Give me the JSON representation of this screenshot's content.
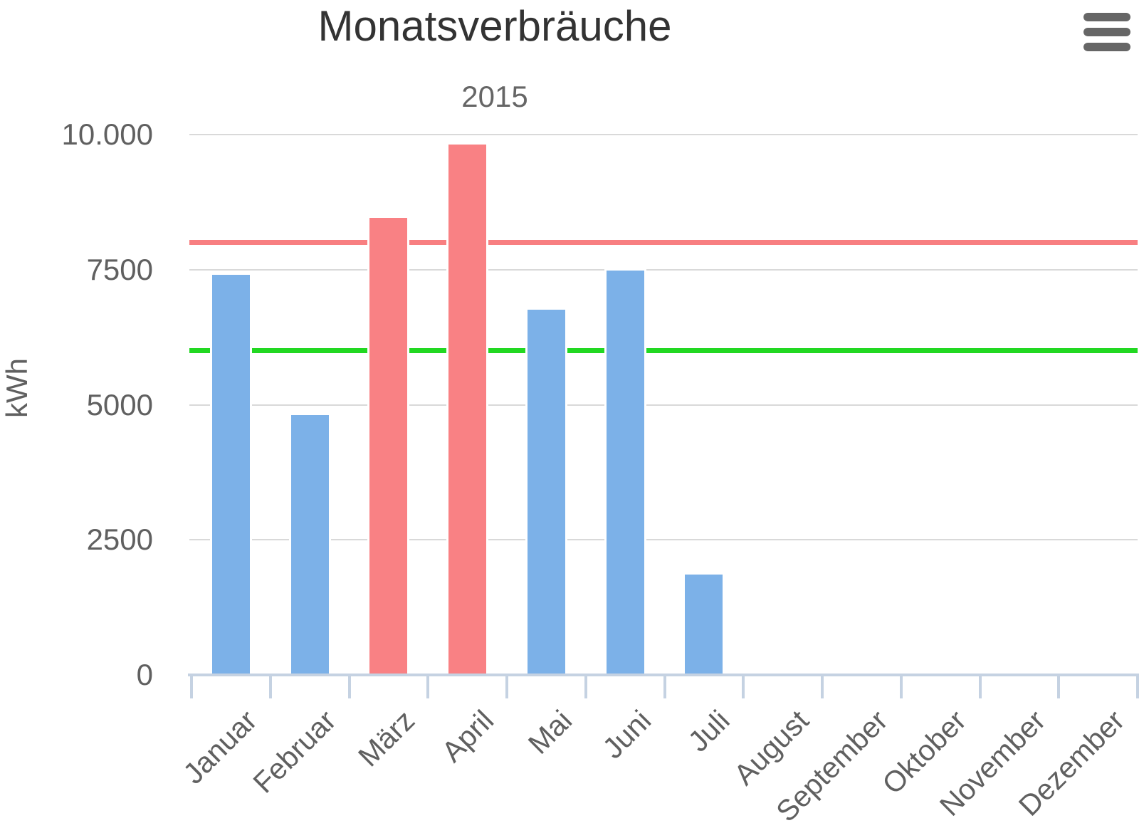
{
  "chart": {
    "title": "Monatsverbräuche",
    "subtitle": "2015",
    "menu_icon": "hamburger-menu-icon"
  },
  "chart_data": {
    "type": "bar",
    "title": "Monatsverbräuche",
    "subtitle": "2015",
    "xlabel": "",
    "ylabel": "kWh",
    "categories": [
      "Januar",
      "Februar",
      "März",
      "April",
      "Mai",
      "Juni",
      "Juli",
      "August",
      "September",
      "Oktober",
      "November",
      "Dezember"
    ],
    "values": [
      7450,
      4850,
      8500,
      9850,
      6800,
      7520,
      1900,
      null,
      null,
      null,
      null,
      null
    ],
    "bar_colors": [
      "#7cb1e8",
      "#7cb1e8",
      "#f98184",
      "#f98184",
      "#7cb1e8",
      "#7cb1e8",
      "#7cb1e8",
      null,
      null,
      null,
      null,
      null
    ],
    "plot_lines": [
      {
        "name": "upper-limit-line",
        "value": 8000,
        "color": "#f87f81"
      },
      {
        "name": "target-line",
        "value": 6000,
        "color": "#22d822"
      }
    ],
    "y_ticks": [
      {
        "value": 10000,
        "label": "10.000"
      },
      {
        "value": 7500,
        "label": "7500"
      },
      {
        "value": 5000,
        "label": "5000"
      },
      {
        "value": 2500,
        "label": "2500"
      },
      {
        "value": 0,
        "label": "0"
      }
    ],
    "ylim": [
      0,
      10000
    ],
    "grid": true,
    "legend": false,
    "colors": {
      "bar_blue": "#7cb1e8",
      "bar_red": "#f98184",
      "plotline_red": "#f87f81",
      "plotline_green": "#22d822",
      "axis_line": "#c5d2e2",
      "gridline": "#d9d9d9",
      "title_text": "#333333",
      "subtitle_text": "#666666",
      "label_text": "#606060"
    }
  }
}
